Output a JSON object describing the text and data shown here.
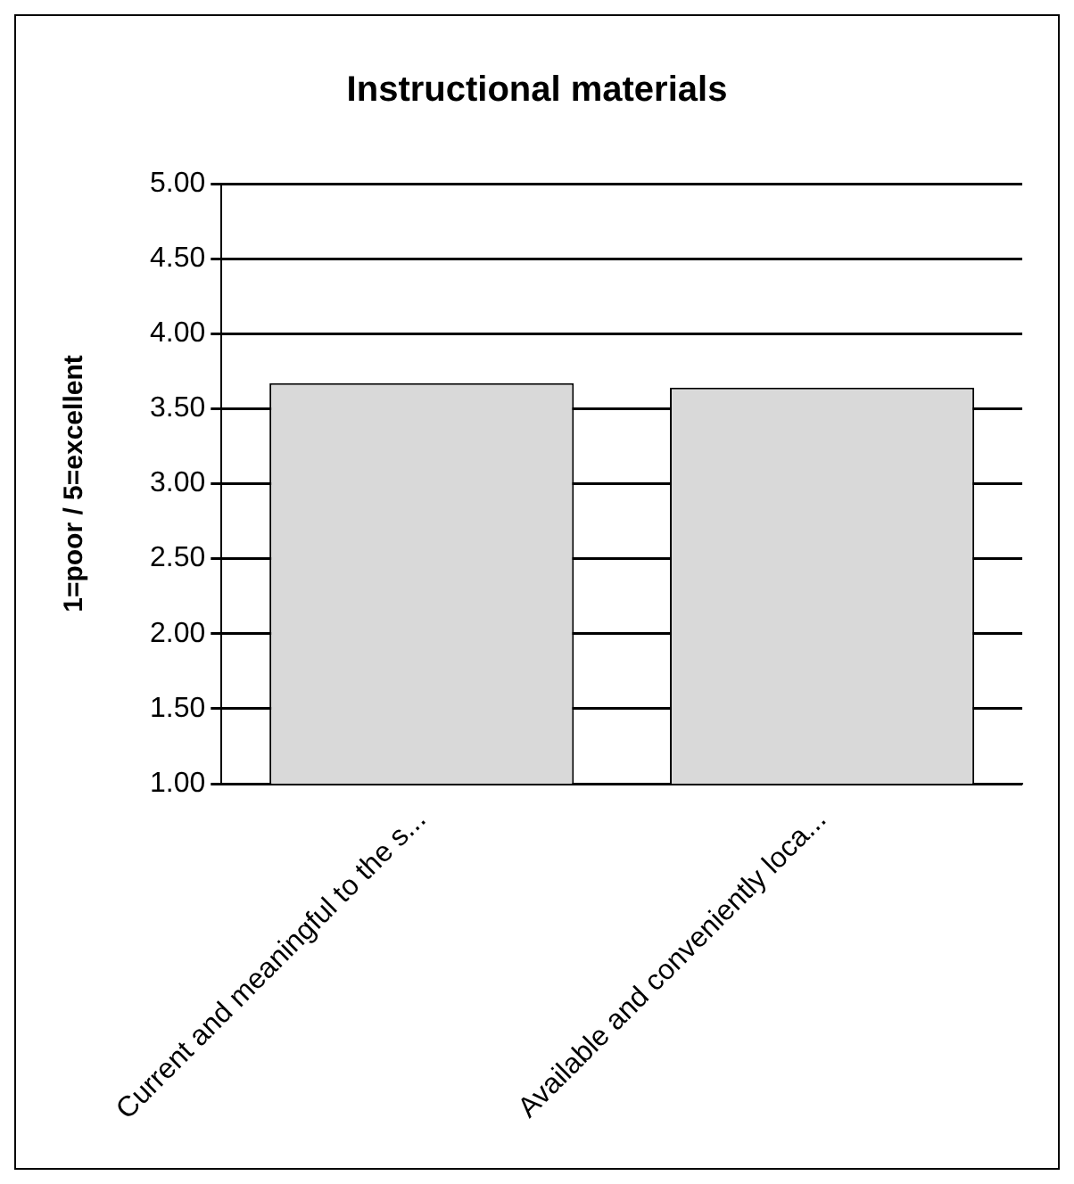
{
  "chart_data": {
    "type": "bar",
    "title": "Instructional materials",
    "ylabel": "1=poor / 5=excellent",
    "categories": [
      "Current and meaningful to the s...",
      "Available and conveniently loca..."
    ],
    "values": [
      3.67,
      3.64
    ],
    "color": "#d9d9d9",
    "ylim": [
      1,
      5
    ],
    "yticks": [
      {
        "value": 1,
        "label": "1.00"
      },
      {
        "value": 1.5,
        "label": "1.50"
      },
      {
        "value": 2,
        "label": "2.00"
      },
      {
        "value": 2.5,
        "label": "2.50"
      },
      {
        "value": 3,
        "label": "3.00"
      },
      {
        "value": 3.5,
        "label": "3.50"
      },
      {
        "value": 4,
        "label": "4.00"
      },
      {
        "value": 4.5,
        "label": "4.50"
      },
      {
        "value": 5,
        "label": "5.00"
      }
    ],
    "grid": "y"
  }
}
